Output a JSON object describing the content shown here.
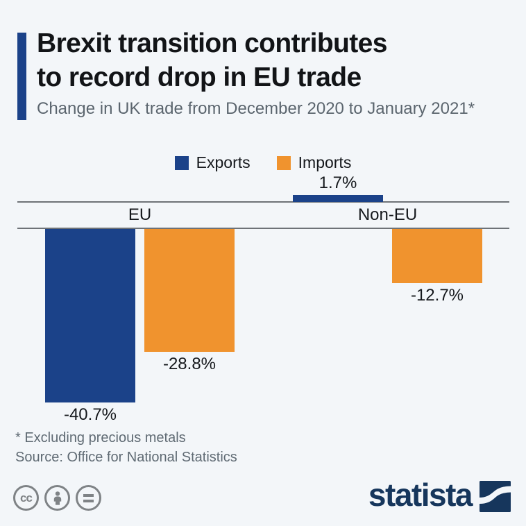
{
  "header": {
    "title_line1": "Brexit transition contributes",
    "title_line2": "to record drop in EU trade",
    "subtitle": "Change in UK trade from December 2020 to January 2021*"
  },
  "chart_data": {
    "type": "bar",
    "categories": [
      "EU",
      "Non-EU"
    ],
    "series": [
      {
        "name": "Exports",
        "color": "#1B4289",
        "values": [
          -40.7,
          1.7
        ],
        "value_labels": [
          "-40.7%",
          "1.7%"
        ]
      },
      {
        "name": "Imports",
        "color": "#F0932E",
        "values": [
          -28.8,
          -12.7
        ],
        "value_labels": [
          "-28.8%",
          "-12.7%"
        ]
      }
    ],
    "unit": "%",
    "baseline": 0,
    "ylim": [
      -45,
      5
    ],
    "grid": "zero-line-only",
    "legend_position": "top",
    "value_labels_shown": true
  },
  "footer": {
    "note": "* Excluding precious metals",
    "source": "Source: Office for National Statistics"
  },
  "branding": {
    "logo_text": "statista",
    "cc_label": "cc",
    "license_icons": [
      "cc-icon",
      "attribution-person-icon",
      "no-derivatives-equals-icon"
    ]
  },
  "colors": {
    "background": "#F3F6F9",
    "exports_blue": "#1B4289",
    "imports_orange": "#F0932E",
    "logo_navy": "#16365C",
    "text_gray": "#5B656E",
    "line_gray": "#6E7277"
  }
}
